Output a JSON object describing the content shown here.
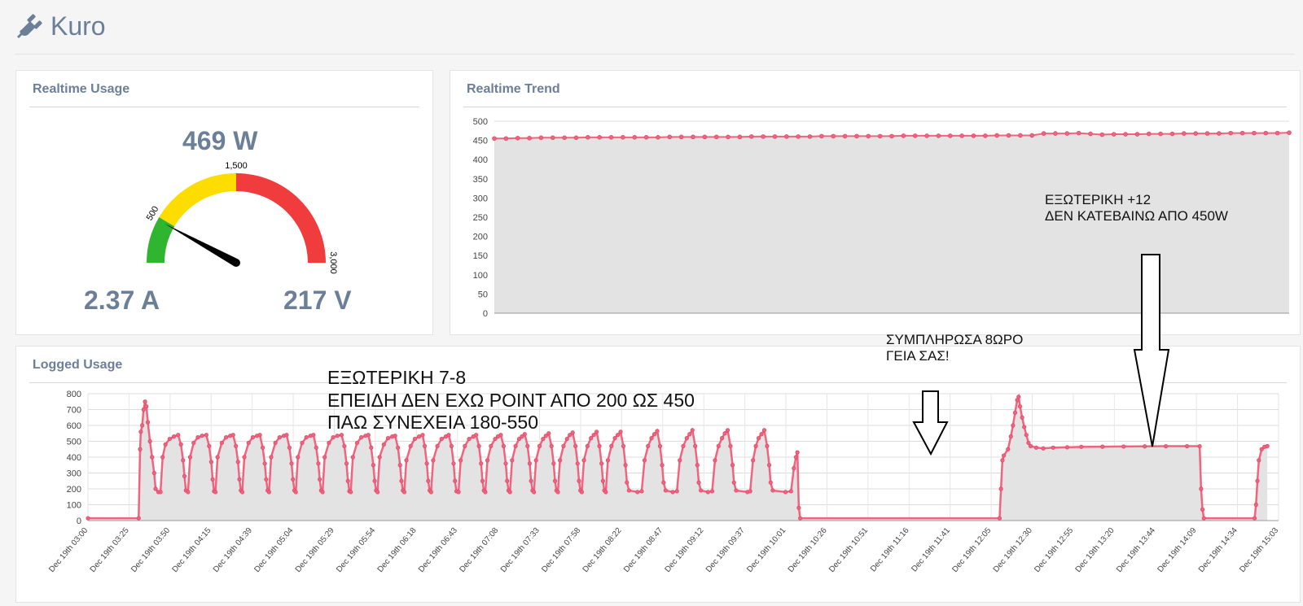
{
  "app": {
    "title": "Kuro",
    "icon": "plug-icon"
  },
  "colors": {
    "accent": "#6b7f99",
    "series": "#f0647e",
    "series_dot": "#e14a6c",
    "fill": "#e3e3e3",
    "gauge_green": "#2fb52f",
    "gauge_yellow": "#fddc00",
    "gauge_red": "#f03c3c"
  },
  "realtime_usage": {
    "title": "Realtime Usage",
    "power": "469 W",
    "current": "2.37 A",
    "voltage": "217 V",
    "gauge": {
      "min": 0,
      "max": 3000,
      "value": 469,
      "bands": [
        {
          "from": 0,
          "to": 500,
          "color": "#2fb52f"
        },
        {
          "from": 500,
          "to": 1500,
          "color": "#fddc00"
        },
        {
          "from": 1500,
          "to": 3000,
          "color": "#f03c3c"
        }
      ],
      "labels": [
        "500",
        "1,500",
        "3,000"
      ]
    }
  },
  "realtime_trend": {
    "title": "Realtime Trend",
    "annotation": [
      "ΕΞΩΤΕΡΙΚΗ +12",
      "ΔΕΝ ΚΑΤΕΒΑΙΝΩ ΑΠΟ 450W"
    ]
  },
  "logged_usage": {
    "title": "Logged Usage",
    "annotation_left": [
      "ΕΞΩΤΕΡΙΚΗ 7-8",
      "ΕΠΕΙΔΗ ΔΕΝ ΕΧΩ ΡΟΙΝΤ ΑΠΟ 200 ΩΣ 450",
      "ΠΑΩ ΣΥΝΕΧΕΙΑ 180-550"
    ],
    "annotation_mid": [
      "ΣΥΜΠΛΗΡΩΣΑ 8ΩΡΟ",
      "ΓΕΙΑ ΣΑΣ!"
    ]
  },
  "chart_data": [
    {
      "type": "area",
      "title": "Realtime Trend",
      "ylim": [
        0,
        500
      ],
      "yticks": [
        0,
        50,
        100,
        150,
        200,
        250,
        300,
        350,
        400,
        450,
        500
      ],
      "grid": true,
      "values": [
        455,
        455,
        456,
        456,
        457,
        457,
        457,
        457,
        458,
        458,
        458,
        458,
        458,
        458,
        458,
        459,
        459,
        459,
        459,
        459,
        459,
        459,
        460,
        460,
        460,
        460,
        460,
        460,
        461,
        461,
        461,
        461,
        461,
        461,
        461,
        462,
        462,
        462,
        462,
        462,
        462,
        462,
        462,
        463,
        463,
        463,
        463,
        468,
        468,
        468,
        469,
        467,
        465,
        466,
        466,
        466,
        467,
        467,
        467,
        468,
        468,
        468,
        468,
        469,
        469,
        469,
        469,
        469,
        470
      ]
    },
    {
      "type": "area",
      "title": "Logged Usage",
      "ylim": [
        0,
        800
      ],
      "yticks": [
        0,
        100,
        200,
        300,
        400,
        500,
        600,
        700,
        800
      ],
      "grid": true,
      "xticks": [
        "Dec 19th 03:00",
        "Dec 19th 03:25",
        "Dec 19th 03:50",
        "Dec 19th 04:15",
        "Dec 19th 04:39",
        "Dec 19th 05:04",
        "Dec 19th 05:29",
        "Dec 19th 05:54",
        "Dec 19th 06:18",
        "Dec 19th 06:43",
        "Dec 19th 07:08",
        "Dec 19th 07:33",
        "Dec 19th 07:58",
        "Dec 19th 08:22",
        "Dec 19th 08:47",
        "Dec 19th 09:12",
        "Dec 19th 09:37",
        "Dec 19th 10:01",
        "Dec 19th 10:26",
        "Dec 19th 10:51",
        "Dec 19th 11:16",
        "Dec 19th 11:41",
        "Dec 19th 12:05",
        "Dec 19th 12:30",
        "Dec 19th 12:55",
        "Dec 19th 13:20",
        "Dec 19th 13:44",
        "Dec 19th 14:09",
        "Dec 19th 14:34",
        "Dec 19th 15:03"
      ],
      "points": [
        [
          0,
          15
        ],
        [
          3.6,
          15
        ],
        [
          3.7,
          450
        ],
        [
          3.75,
          560
        ],
        [
          3.85,
          600
        ],
        [
          3.95,
          700
        ],
        [
          4.05,
          750
        ],
        [
          4.15,
          720
        ],
        [
          4.25,
          620
        ],
        [
          4.4,
          500
        ],
        [
          4.55,
          400
        ],
        [
          4.7,
          300
        ],
        [
          4.8,
          200
        ],
        [
          5.0,
          180
        ],
        [
          5.15,
          180
        ],
        [
          5.3,
          400
        ],
        [
          5.5,
          480
        ],
        [
          5.8,
          515
        ],
        [
          6.1,
          530
        ],
        [
          6.4,
          540
        ],
        [
          6.6,
          480
        ],
        [
          6.75,
          380
        ],
        [
          6.85,
          280
        ],
        [
          6.95,
          190
        ],
        [
          7.1,
          180
        ],
        [
          7.25,
          400
        ],
        [
          7.5,
          490
        ],
        [
          7.8,
          525
        ],
        [
          8.1,
          535
        ],
        [
          8.4,
          540
        ],
        [
          8.6,
          470
        ],
        [
          8.75,
          370
        ],
        [
          8.85,
          260
        ],
        [
          8.95,
          185
        ],
        [
          9.05,
          180
        ],
        [
          9.2,
          400
        ],
        [
          9.5,
          490
        ],
        [
          9.8,
          525
        ],
        [
          10.1,
          535
        ],
        [
          10.3,
          540
        ],
        [
          10.5,
          470
        ],
        [
          10.65,
          370
        ],
        [
          10.75,
          260
        ],
        [
          10.85,
          190
        ],
        [
          10.95,
          180
        ],
        [
          11.1,
          400
        ],
        [
          11.4,
          490
        ],
        [
          11.7,
          525
        ],
        [
          12.0,
          535
        ],
        [
          12.2,
          540
        ],
        [
          12.4,
          460
        ],
        [
          12.55,
          360
        ],
        [
          12.65,
          260
        ],
        [
          12.75,
          190
        ],
        [
          12.85,
          180
        ],
        [
          13.0,
          400
        ],
        [
          13.3,
          490
        ],
        [
          13.6,
          525
        ],
        [
          13.9,
          535
        ],
        [
          14.1,
          540
        ],
        [
          14.3,
          460
        ],
        [
          14.45,
          360
        ],
        [
          14.55,
          260
        ],
        [
          14.65,
          190
        ],
        [
          14.75,
          180
        ],
        [
          14.9,
          400
        ],
        [
          15.2,
          490
        ],
        [
          15.5,
          525
        ],
        [
          15.8,
          535
        ],
        [
          16.0,
          540
        ],
        [
          16.2,
          460
        ],
        [
          16.35,
          360
        ],
        [
          16.45,
          260
        ],
        [
          16.55,
          190
        ],
        [
          16.65,
          180
        ],
        [
          16.8,
          400
        ],
        [
          17.1,
          490
        ],
        [
          17.4,
          525
        ],
        [
          17.7,
          535
        ],
        [
          18.0,
          540
        ],
        [
          18.2,
          470
        ],
        [
          18.35,
          360
        ],
        [
          18.45,
          250
        ],
        [
          18.55,
          185
        ],
        [
          18.65,
          180
        ],
        [
          18.8,
          400
        ],
        [
          19.1,
          490
        ],
        [
          19.4,
          525
        ],
        [
          19.7,
          535
        ],
        [
          19.9,
          540
        ],
        [
          20.1,
          460
        ],
        [
          20.25,
          350
        ],
        [
          20.35,
          250
        ],
        [
          20.45,
          190
        ],
        [
          20.55,
          180
        ],
        [
          20.7,
          400
        ],
        [
          21.0,
          480
        ],
        [
          21.3,
          520
        ],
        [
          21.6,
          530
        ],
        [
          21.8,
          535
        ],
        [
          22.0,
          460
        ],
        [
          22.15,
          350
        ],
        [
          22.25,
          250
        ],
        [
          22.35,
          190
        ],
        [
          22.45,
          180
        ],
        [
          22.6,
          380
        ],
        [
          22.9,
          470
        ],
        [
          23.2,
          515
        ],
        [
          23.5,
          530
        ],
        [
          23.75,
          540
        ],
        [
          23.9,
          470
        ],
        [
          24.05,
          360
        ],
        [
          24.15,
          250
        ],
        [
          24.25,
          190
        ],
        [
          24.35,
          180
        ],
        [
          24.5,
          380
        ],
        [
          24.8,
          470
        ],
        [
          25.1,
          515
        ],
        [
          25.4,
          530
        ],
        [
          25.6,
          540
        ],
        [
          25.8,
          470
        ],
        [
          25.95,
          360
        ],
        [
          26.05,
          250
        ],
        [
          26.15,
          185
        ],
        [
          26.3,
          180
        ],
        [
          26.45,
          380
        ],
        [
          26.75,
          470
        ],
        [
          27.05,
          515
        ],
        [
          27.35,
          530
        ],
        [
          27.55,
          540
        ],
        [
          27.75,
          470
        ],
        [
          27.9,
          360
        ],
        [
          28.0,
          250
        ],
        [
          28.1,
          190
        ],
        [
          28.2,
          180
        ],
        [
          28.35,
          380
        ],
        [
          28.6,
          470
        ],
        [
          28.9,
          515
        ],
        [
          29.1,
          530
        ],
        [
          29.3,
          540
        ],
        [
          29.5,
          470
        ],
        [
          29.65,
          360
        ],
        [
          29.75,
          250
        ],
        [
          29.85,
          190
        ],
        [
          29.95,
          180
        ],
        [
          30.1,
          380
        ],
        [
          30.35,
          470
        ],
        [
          30.6,
          515
        ],
        [
          30.8,
          530
        ],
        [
          31.0,
          545
        ],
        [
          31.2,
          470
        ],
        [
          31.35,
          360
        ],
        [
          31.45,
          250
        ],
        [
          31.55,
          190
        ],
        [
          31.65,
          180
        ],
        [
          31.8,
          380
        ],
        [
          32.05,
          470
        ],
        [
          32.3,
          515
        ],
        [
          32.5,
          535
        ],
        [
          32.7,
          550
        ],
        [
          32.9,
          470
        ],
        [
          33.05,
          360
        ],
        [
          33.15,
          250
        ],
        [
          33.25,
          190
        ],
        [
          33.35,
          180
        ],
        [
          33.5,
          380
        ],
        [
          33.75,
          470
        ],
        [
          34.0,
          515
        ],
        [
          34.2,
          540
        ],
        [
          34.4,
          555
        ],
        [
          34.6,
          470
        ],
        [
          34.75,
          360
        ],
        [
          34.85,
          250
        ],
        [
          34.95,
          190
        ],
        [
          35.05,
          180
        ],
        [
          35.2,
          380
        ],
        [
          35.45,
          470
        ],
        [
          35.7,
          520
        ],
        [
          35.9,
          540
        ],
        [
          36.1,
          560
        ],
        [
          36.3,
          470
        ],
        [
          36.45,
          360
        ],
        [
          36.55,
          250
        ],
        [
          36.65,
          190
        ],
        [
          36.75,
          180
        ],
        [
          36.9,
          380
        ],
        [
          37.15,
          470
        ],
        [
          37.4,
          520
        ],
        [
          37.6,
          540
        ],
        [
          37.8,
          560
        ],
        [
          38.0,
          470
        ],
        [
          38.15,
          350
        ],
        [
          38.25,
          240
        ],
        [
          38.4,
          190
        ],
        [
          39.0,
          180
        ],
        [
          39.3,
          185
        ],
        [
          39.5,
          380
        ],
        [
          39.75,
          470
        ],
        [
          40.0,
          520
        ],
        [
          40.2,
          545
        ],
        [
          40.4,
          565
        ],
        [
          40.6,
          470
        ],
        [
          40.75,
          350
        ],
        [
          40.85,
          240
        ],
        [
          41.0,
          190
        ],
        [
          41.5,
          180
        ],
        [
          41.8,
          185
        ],
        [
          42.0,
          380
        ],
        [
          42.25,
          470
        ],
        [
          42.5,
          520
        ],
        [
          42.7,
          545
        ],
        [
          42.9,
          570
        ],
        [
          43.1,
          470
        ],
        [
          43.25,
          350
        ],
        [
          43.35,
          240
        ],
        [
          43.5,
          190
        ],
        [
          44.0,
          180
        ],
        [
          44.3,
          185
        ],
        [
          44.5,
          380
        ],
        [
          44.75,
          470
        ],
        [
          45.0,
          520
        ],
        [
          45.2,
          550
        ],
        [
          45.4,
          570
        ],
        [
          45.6,
          470
        ],
        [
          45.75,
          350
        ],
        [
          45.85,
          240
        ],
        [
          46.0,
          190
        ],
        [
          46.8,
          180
        ],
        [
          47.0,
          185
        ],
        [
          47.2,
          380
        ],
        [
          47.4,
          470
        ],
        [
          47.6,
          520
        ],
        [
          47.8,
          545
        ],
        [
          48.0,
          570
        ],
        [
          48.2,
          470
        ],
        [
          48.35,
          350
        ],
        [
          48.45,
          240
        ],
        [
          48.6,
          190
        ],
        [
          49.5,
          180
        ],
        [
          49.9,
          185
        ],
        [
          50.1,
          330
        ],
        [
          50.25,
          400
        ],
        [
          50.35,
          430
        ],
        [
          50.45,
          80
        ],
        [
          50.55,
          15
        ],
        [
          64.7,
          15
        ],
        [
          64.8,
          200
        ],
        [
          64.9,
          380
        ],
        [
          65.0,
          410
        ],
        [
          65.3,
          450
        ],
        [
          65.5,
          530
        ],
        [
          65.65,
          600
        ],
        [
          65.8,
          680
        ],
        [
          65.95,
          760
        ],
        [
          66.05,
          780
        ],
        [
          66.15,
          720
        ],
        [
          66.3,
          650
        ],
        [
          66.45,
          590
        ],
        [
          66.6,
          540
        ],
        [
          66.75,
          490
        ],
        [
          66.9,
          470
        ],
        [
          67.3,
          460
        ],
        [
          67.8,
          455
        ],
        [
          68.5,
          460
        ],
        [
          69.5,
          462
        ],
        [
          70.5,
          465
        ],
        [
          72.0,
          466
        ],
        [
          73.5,
          467
        ],
        [
          75.0,
          468
        ],
        [
          76.5,
          469
        ],
        [
          78.0,
          469
        ],
        [
          78.9,
          469
        ],
        [
          79.0,
          200
        ],
        [
          79.1,
          70
        ],
        [
          79.2,
          15
        ],
        [
          82.8,
          15
        ],
        [
          82.9,
          100
        ],
        [
          83.0,
          250
        ],
        [
          83.1,
          380
        ],
        [
          83.3,
          450
        ],
        [
          83.5,
          465
        ],
        [
          83.7,
          470
        ]
      ],
      "x_max": 84.5
    }
  ]
}
